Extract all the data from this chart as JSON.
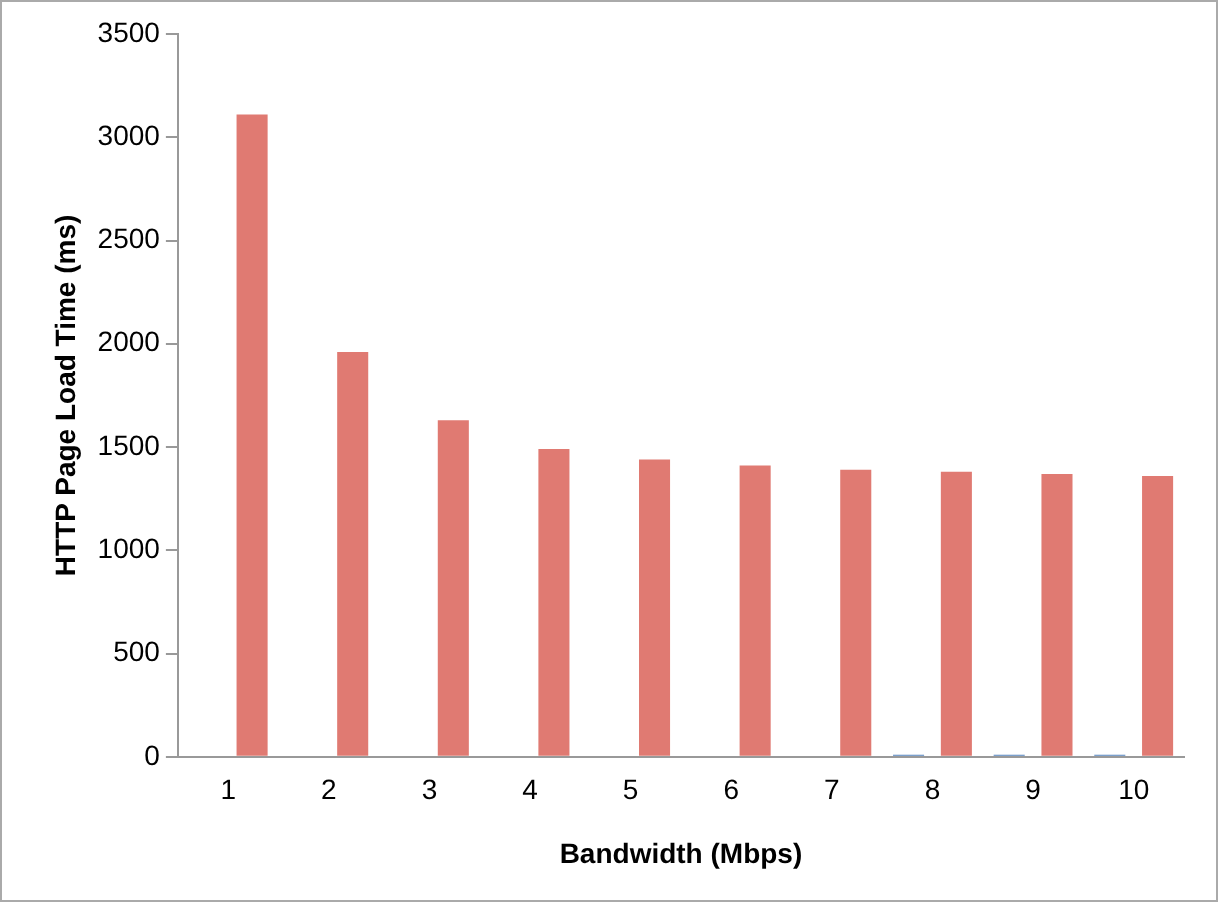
{
  "chart_data": {
    "type": "bar",
    "xlabel": "Bandwidth (Mbps)",
    "ylabel": "HTTP Page Load Time (ms)",
    "categories": [
      "1",
      "2",
      "3",
      "4",
      "5",
      "6",
      "7",
      "8",
      "9",
      "10"
    ],
    "series": [
      {
        "color": "#4f81bd",
        "values": [
          0,
          0,
          0,
          0,
          0,
          0,
          0,
          10,
          10,
          10
        ]
      },
      {
        "color": "#e07a72",
        "values": [
          3110,
          1960,
          1630,
          1490,
          1440,
          1410,
          1390,
          1380,
          1370,
          1360
        ]
      }
    ],
    "ylim": [
      0,
      3500
    ],
    "yticks": [
      0,
      500,
      1000,
      1500,
      2000,
      2500,
      3000,
      3500
    ],
    "grid": false,
    "legend": false
  }
}
